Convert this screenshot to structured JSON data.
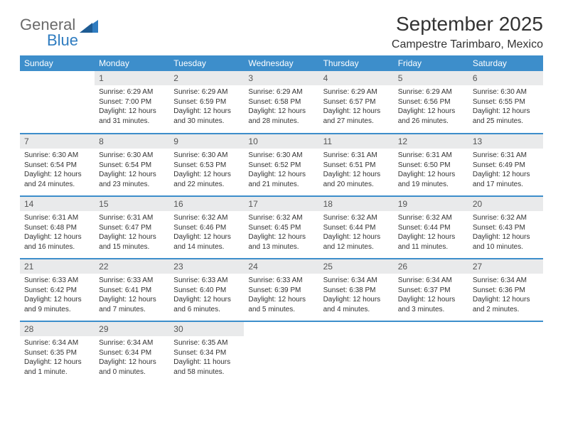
{
  "logo": {
    "word1": "General",
    "word2": "Blue"
  },
  "title": "September 2025",
  "location": "Campestre Tarimbaro, Mexico",
  "colors": {
    "header_bg": "#3d8ecb",
    "header_text": "#ffffff",
    "daynum_bg": "#e9eaeb",
    "row_divider": "#3d8ecb",
    "logo_gray": "#6a6a6a",
    "logo_blue": "#2f7cc0",
    "text": "#333333"
  },
  "day_headers": [
    "Sunday",
    "Monday",
    "Tuesday",
    "Wednesday",
    "Thursday",
    "Friday",
    "Saturday"
  ],
  "weeks": [
    [
      {
        "n": "",
        "sunrise": "",
        "sunset": "",
        "daylight": ""
      },
      {
        "n": "1",
        "sunrise": "Sunrise: 6:29 AM",
        "sunset": "Sunset: 7:00 PM",
        "daylight": "Daylight: 12 hours and 31 minutes."
      },
      {
        "n": "2",
        "sunrise": "Sunrise: 6:29 AM",
        "sunset": "Sunset: 6:59 PM",
        "daylight": "Daylight: 12 hours and 30 minutes."
      },
      {
        "n": "3",
        "sunrise": "Sunrise: 6:29 AM",
        "sunset": "Sunset: 6:58 PM",
        "daylight": "Daylight: 12 hours and 28 minutes."
      },
      {
        "n": "4",
        "sunrise": "Sunrise: 6:29 AM",
        "sunset": "Sunset: 6:57 PM",
        "daylight": "Daylight: 12 hours and 27 minutes."
      },
      {
        "n": "5",
        "sunrise": "Sunrise: 6:29 AM",
        "sunset": "Sunset: 6:56 PM",
        "daylight": "Daylight: 12 hours and 26 minutes."
      },
      {
        "n": "6",
        "sunrise": "Sunrise: 6:30 AM",
        "sunset": "Sunset: 6:55 PM",
        "daylight": "Daylight: 12 hours and 25 minutes."
      }
    ],
    [
      {
        "n": "7",
        "sunrise": "Sunrise: 6:30 AM",
        "sunset": "Sunset: 6:54 PM",
        "daylight": "Daylight: 12 hours and 24 minutes."
      },
      {
        "n": "8",
        "sunrise": "Sunrise: 6:30 AM",
        "sunset": "Sunset: 6:54 PM",
        "daylight": "Daylight: 12 hours and 23 minutes."
      },
      {
        "n": "9",
        "sunrise": "Sunrise: 6:30 AM",
        "sunset": "Sunset: 6:53 PM",
        "daylight": "Daylight: 12 hours and 22 minutes."
      },
      {
        "n": "10",
        "sunrise": "Sunrise: 6:30 AM",
        "sunset": "Sunset: 6:52 PM",
        "daylight": "Daylight: 12 hours and 21 minutes."
      },
      {
        "n": "11",
        "sunrise": "Sunrise: 6:31 AM",
        "sunset": "Sunset: 6:51 PM",
        "daylight": "Daylight: 12 hours and 20 minutes."
      },
      {
        "n": "12",
        "sunrise": "Sunrise: 6:31 AM",
        "sunset": "Sunset: 6:50 PM",
        "daylight": "Daylight: 12 hours and 19 minutes."
      },
      {
        "n": "13",
        "sunrise": "Sunrise: 6:31 AM",
        "sunset": "Sunset: 6:49 PM",
        "daylight": "Daylight: 12 hours and 17 minutes."
      }
    ],
    [
      {
        "n": "14",
        "sunrise": "Sunrise: 6:31 AM",
        "sunset": "Sunset: 6:48 PM",
        "daylight": "Daylight: 12 hours and 16 minutes."
      },
      {
        "n": "15",
        "sunrise": "Sunrise: 6:31 AM",
        "sunset": "Sunset: 6:47 PM",
        "daylight": "Daylight: 12 hours and 15 minutes."
      },
      {
        "n": "16",
        "sunrise": "Sunrise: 6:32 AM",
        "sunset": "Sunset: 6:46 PM",
        "daylight": "Daylight: 12 hours and 14 minutes."
      },
      {
        "n": "17",
        "sunrise": "Sunrise: 6:32 AM",
        "sunset": "Sunset: 6:45 PM",
        "daylight": "Daylight: 12 hours and 13 minutes."
      },
      {
        "n": "18",
        "sunrise": "Sunrise: 6:32 AM",
        "sunset": "Sunset: 6:44 PM",
        "daylight": "Daylight: 12 hours and 12 minutes."
      },
      {
        "n": "19",
        "sunrise": "Sunrise: 6:32 AM",
        "sunset": "Sunset: 6:44 PM",
        "daylight": "Daylight: 12 hours and 11 minutes."
      },
      {
        "n": "20",
        "sunrise": "Sunrise: 6:32 AM",
        "sunset": "Sunset: 6:43 PM",
        "daylight": "Daylight: 12 hours and 10 minutes."
      }
    ],
    [
      {
        "n": "21",
        "sunrise": "Sunrise: 6:33 AM",
        "sunset": "Sunset: 6:42 PM",
        "daylight": "Daylight: 12 hours and 9 minutes."
      },
      {
        "n": "22",
        "sunrise": "Sunrise: 6:33 AM",
        "sunset": "Sunset: 6:41 PM",
        "daylight": "Daylight: 12 hours and 7 minutes."
      },
      {
        "n": "23",
        "sunrise": "Sunrise: 6:33 AM",
        "sunset": "Sunset: 6:40 PM",
        "daylight": "Daylight: 12 hours and 6 minutes."
      },
      {
        "n": "24",
        "sunrise": "Sunrise: 6:33 AM",
        "sunset": "Sunset: 6:39 PM",
        "daylight": "Daylight: 12 hours and 5 minutes."
      },
      {
        "n": "25",
        "sunrise": "Sunrise: 6:34 AM",
        "sunset": "Sunset: 6:38 PM",
        "daylight": "Daylight: 12 hours and 4 minutes."
      },
      {
        "n": "26",
        "sunrise": "Sunrise: 6:34 AM",
        "sunset": "Sunset: 6:37 PM",
        "daylight": "Daylight: 12 hours and 3 minutes."
      },
      {
        "n": "27",
        "sunrise": "Sunrise: 6:34 AM",
        "sunset": "Sunset: 6:36 PM",
        "daylight": "Daylight: 12 hours and 2 minutes."
      }
    ],
    [
      {
        "n": "28",
        "sunrise": "Sunrise: 6:34 AM",
        "sunset": "Sunset: 6:35 PM",
        "daylight": "Daylight: 12 hours and 1 minute."
      },
      {
        "n": "29",
        "sunrise": "Sunrise: 6:34 AM",
        "sunset": "Sunset: 6:34 PM",
        "daylight": "Daylight: 12 hours and 0 minutes."
      },
      {
        "n": "30",
        "sunrise": "Sunrise: 6:35 AM",
        "sunset": "Sunset: 6:34 PM",
        "daylight": "Daylight: 11 hours and 58 minutes."
      },
      {
        "n": "",
        "sunrise": "",
        "sunset": "",
        "daylight": ""
      },
      {
        "n": "",
        "sunrise": "",
        "sunset": "",
        "daylight": ""
      },
      {
        "n": "",
        "sunrise": "",
        "sunset": "",
        "daylight": ""
      },
      {
        "n": "",
        "sunrise": "",
        "sunset": "",
        "daylight": ""
      }
    ]
  ]
}
